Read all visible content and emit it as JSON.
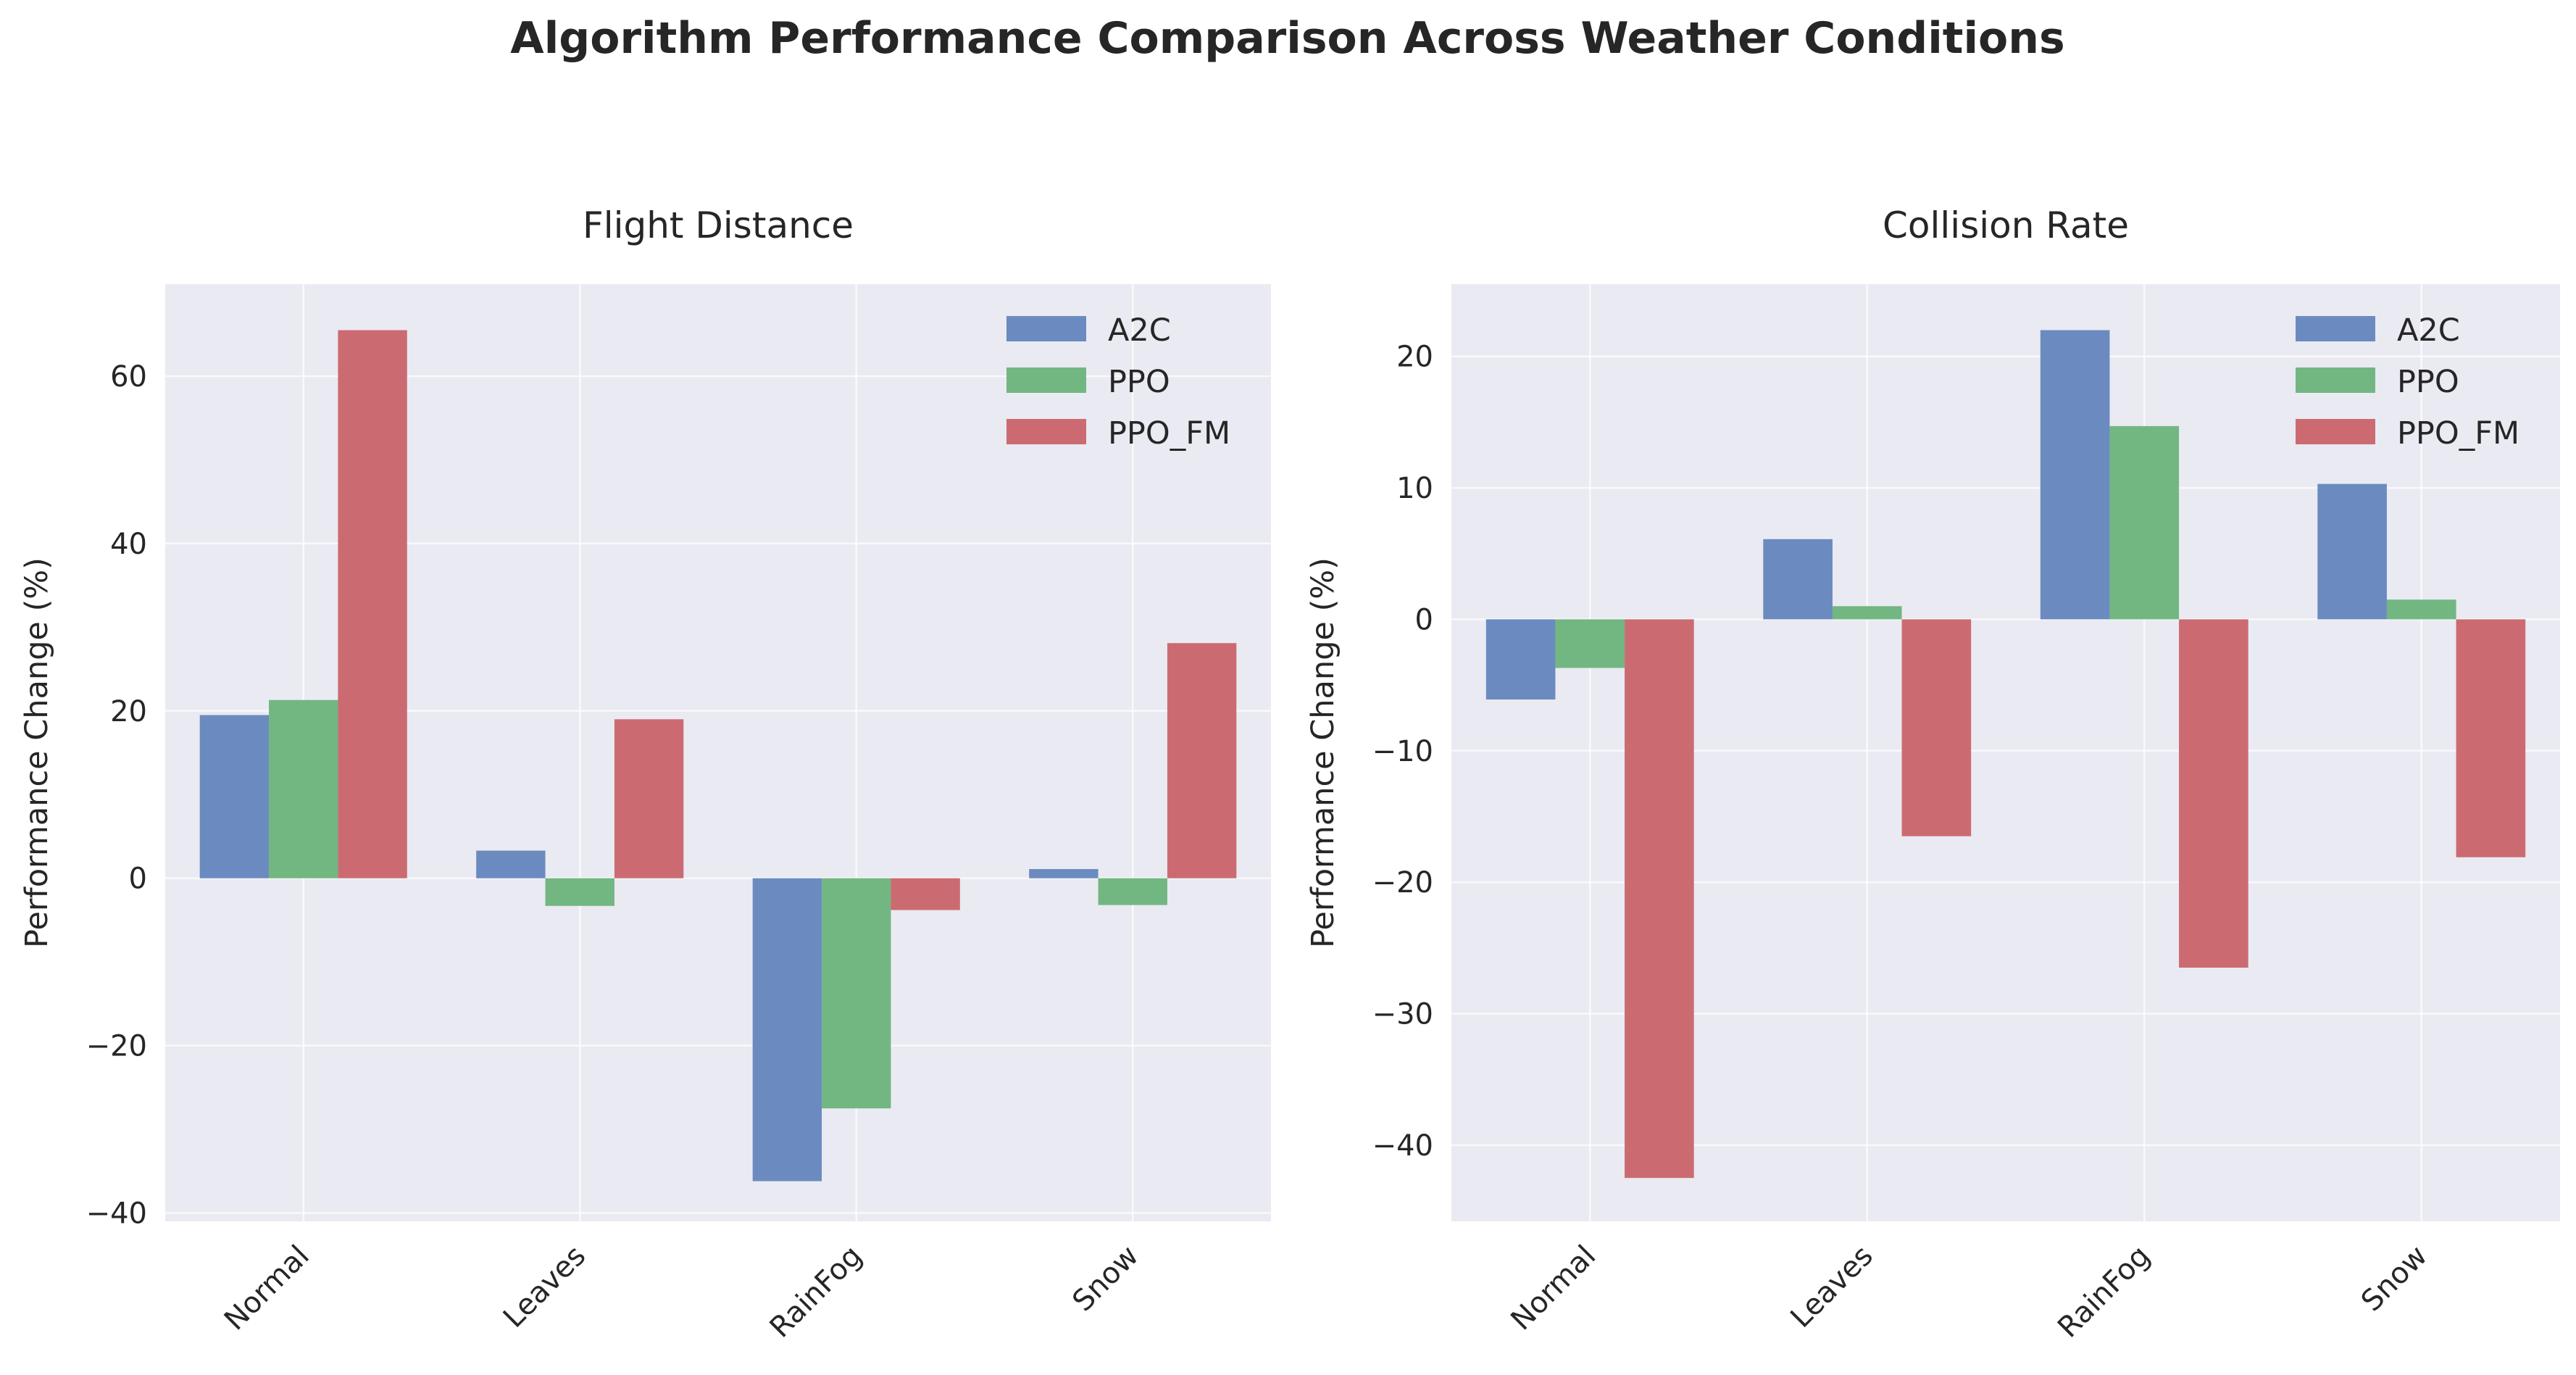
{
  "figure_title": "Algorithm Performance Comparison Across Weather Conditions",
  "colors": {
    "plot_bg": "#EAEAF2",
    "grid": "#FFFFFF",
    "series": [
      "#6B8BC0",
      "#72B682",
      "#CB6B71"
    ]
  },
  "chart_data": [
    {
      "type": "bar",
      "title": "Flight Distance",
      "ylabel": "Performance Change (%)",
      "categories": [
        "Normal",
        "Leaves",
        "RainFog",
        "Snow"
      ],
      "ylim": [
        -41,
        71
      ],
      "yticks": [
        -40,
        -20,
        0,
        20,
        40,
        60
      ],
      "ytick_labels": [
        "−40",
        "−20",
        "0",
        "20",
        "40",
        "60"
      ],
      "legend_position": "top-right",
      "grid": true,
      "series": [
        {
          "name": "A2C",
          "values": [
            19.5,
            3.3,
            -36.2,
            1.1
          ]
        },
        {
          "name": "PPO",
          "values": [
            21.3,
            -3.3,
            -27.5,
            -3.2
          ]
        },
        {
          "name": "PPO_FM",
          "values": [
            65.5,
            19.0,
            -3.8,
            28.1
          ]
        }
      ]
    },
    {
      "type": "bar",
      "title": "Collision Rate",
      "ylabel": "Performance Change (%)",
      "categories": [
        "Normal",
        "Leaves",
        "RainFog",
        "Snow"
      ],
      "ylim": [
        -45.8,
        25.5
      ],
      "yticks": [
        -40,
        -30,
        -20,
        -10,
        0,
        10,
        20
      ],
      "ytick_labels": [
        "−40",
        "−30",
        "−20",
        "−10",
        "0",
        "10",
        "20"
      ],
      "legend_position": "top-right",
      "grid": true,
      "series": [
        {
          "name": "A2C",
          "values": [
            -6.1,
            6.1,
            22.0,
            10.3
          ]
        },
        {
          "name": "PPO",
          "values": [
            -3.7,
            1.0,
            14.7,
            1.5
          ]
        },
        {
          "name": "PPO_FM",
          "values": [
            -42.5,
            -16.5,
            -26.5,
            -18.1
          ]
        }
      ]
    }
  ]
}
